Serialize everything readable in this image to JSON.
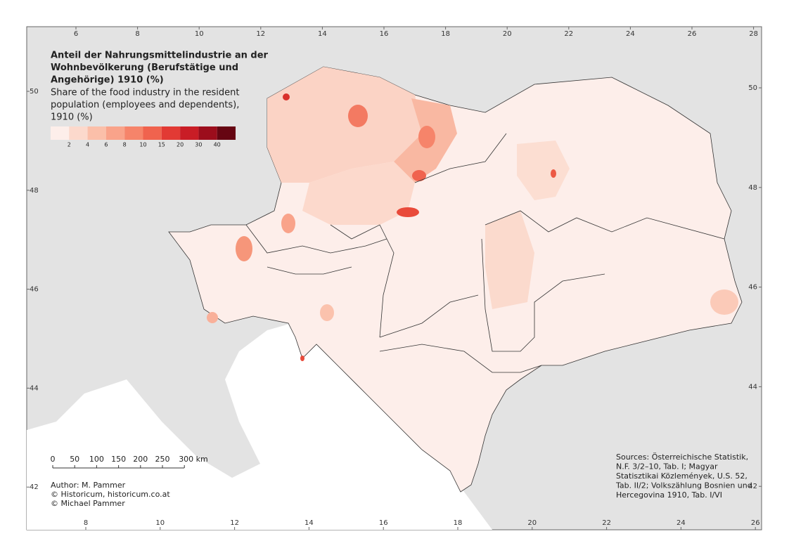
{
  "title_de": [
    "Anteil der Nahrungsmittelindustrie an der",
    "Wohnbevölkerung (Berufstätige und",
    "Angehörige) 1910 (%)"
  ],
  "title_en": [
    "Share of the food industry in the resident",
    "population (employees and dependents),",
    "1910 (%)"
  ],
  "legend": {
    "colors": [
      "#fdeeea",
      "#fcd9cc",
      "#fbbfa9",
      "#f9a38a",
      "#f6846a",
      "#f0634e",
      "#e23a34",
      "#c91d26",
      "#9c0d1c",
      "#660512"
    ],
    "breaks": [
      2,
      4,
      6,
      8,
      10,
      15,
      20,
      30,
      40
    ]
  },
  "graticule": {
    "top": [
      6,
      8,
      10,
      12,
      14,
      16,
      18,
      20,
      22,
      24,
      26,
      28
    ],
    "bottom": [
      8,
      10,
      12,
      14,
      16,
      18,
      20,
      22,
      24,
      26
    ],
    "left": [
      50,
      48,
      46,
      44,
      42
    ],
    "right": [
      50,
      48,
      46,
      44,
      42
    ]
  },
  "scale_bar": [
    "0",
    "50",
    "100",
    "150",
    "200",
    "250",
    "300 km"
  ],
  "author": [
    "Author: M. Pammer",
    "© Historicum, historicum.co.at",
    "© Michael Pammer"
  ],
  "sources": [
    "Sources: Österreichische Statistik,",
    "N.F. 3/2–10, Tab. I; Magyar",
    "Statisztikai Közlemények, U.S. 52,",
    "Tab. II/2; Volkszählung Bosnien und",
    "Hercegovina 1910, Tab. I/VI"
  ]
}
